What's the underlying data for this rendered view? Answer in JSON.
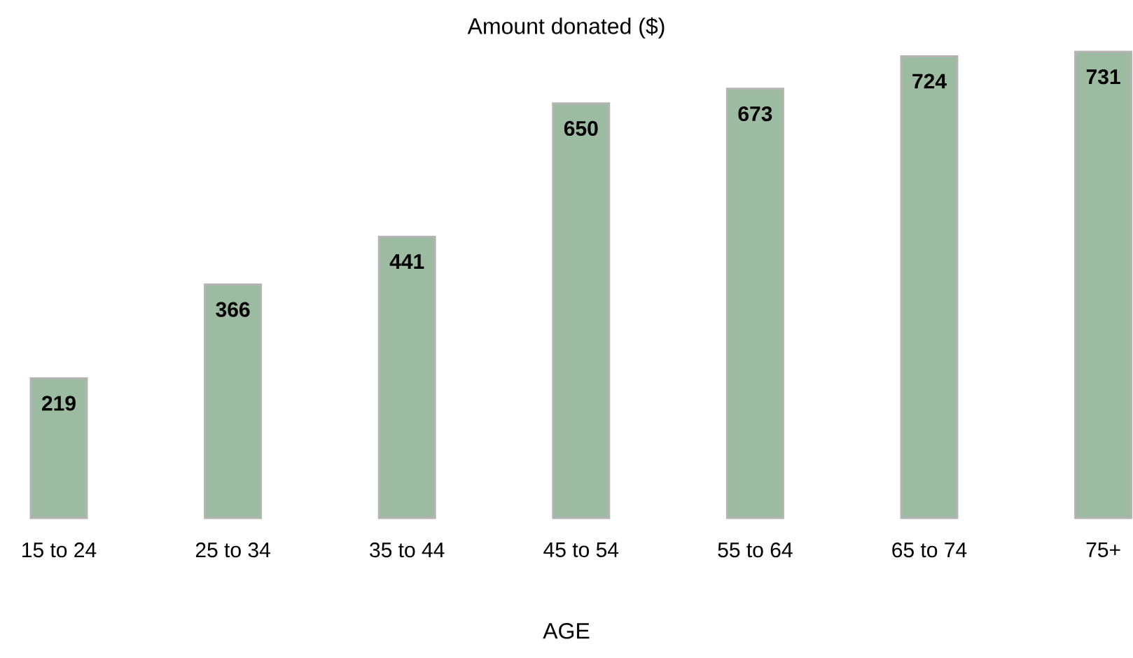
{
  "chart_data": {
    "type": "bar",
    "title": "Amount donated ($)",
    "xlabel": "AGE",
    "categories": [
      "15 to 24",
      "25 to 34",
      "35 to 44",
      "45 to 54",
      "55 to 64",
      "65 to 74",
      "75+"
    ],
    "values": [
      219,
      366,
      441,
      650,
      673,
      724,
      731
    ],
    "color": "#9dbba0",
    "data_labels": true
  }
}
